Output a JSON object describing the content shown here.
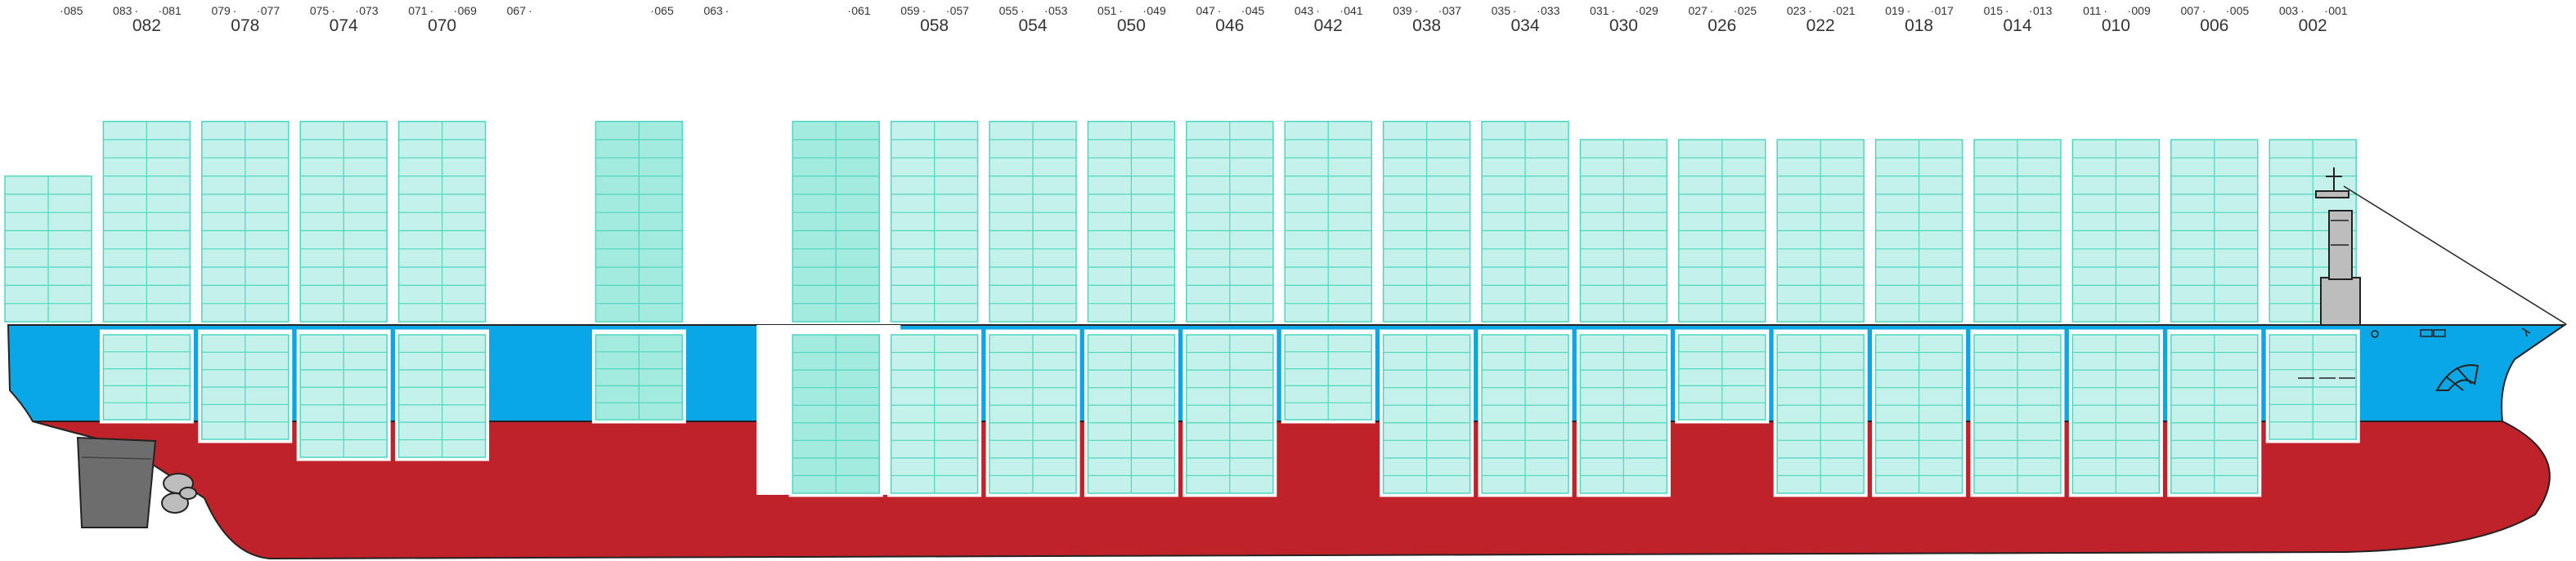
{
  "colors": {
    "hull_red": "#bf2229",
    "hull_blue": "#0aa7e6",
    "hull_blue_dark": "#0a82c8",
    "container_fill": "#c4f2ea",
    "container_highlight": "#a3ebde",
    "container_line": "#4fd6bf",
    "outline": "#222222",
    "machinery_grey": "#6d6d6d",
    "bridge_grey": "#bdbdbd"
  },
  "icons": {
    "propeller": "propeller-icon",
    "rudder": "rudder-icon",
    "bridge": "bridge-icon",
    "mast": "mast-icon",
    "logo": "company-logo-icon"
  },
  "bays": [
    {
      "big": "",
      "left": "",
      "right": "085",
      "deck_tiers": 8,
      "deck_style": "normal",
      "hold": "none"
    },
    {
      "big": "082",
      "left": "083",
      "right": "081",
      "deck_tiers": 11,
      "deck_style": "normal",
      "hold": "short"
    },
    {
      "big": "078",
      "left": "079",
      "right": "077",
      "deck_tiers": 11,
      "deck_style": "normal",
      "hold": "medium"
    },
    {
      "big": "074",
      "left": "075",
      "right": "073",
      "deck_tiers": 11,
      "deck_style": "normal",
      "hold": "long"
    },
    {
      "big": "070",
      "left": "071",
      "right": "069",
      "deck_tiers": 11,
      "deck_style": "normal",
      "hold": "long"
    },
    {
      "big": "",
      "left": "067",
      "right": "",
      "deck_tiers": 0,
      "deck_style": "none",
      "hold": "none"
    },
    {
      "big": "",
      "left": "",
      "right": "065",
      "deck_tiers": 11,
      "deck_style": "highlight",
      "hold": "single"
    },
    {
      "big": "",
      "left": "063",
      "right": "",
      "deck_tiers": 0,
      "deck_style": "none",
      "hold": "none"
    },
    {
      "big": "",
      "left": "",
      "right": "061",
      "deck_tiers": 11,
      "deck_style": "highlight",
      "hold": "full"
    },
    {
      "big": "058",
      "left": "059",
      "right": "057",
      "deck_tiers": 11,
      "deck_style": "normal",
      "hold": "full"
    },
    {
      "big": "054",
      "left": "055",
      "right": "053",
      "deck_tiers": 11,
      "deck_style": "normal",
      "hold": "full"
    },
    {
      "big": "050",
      "left": "051",
      "right": "049",
      "deck_tiers": 11,
      "deck_style": "normal",
      "hold": "full"
    },
    {
      "big": "046",
      "left": "047",
      "right": "045",
      "deck_tiers": 11,
      "deck_style": "normal",
      "hold": "full"
    },
    {
      "big": "042",
      "left": "043",
      "right": "041",
      "deck_tiers": 11,
      "deck_style": "normal",
      "hold": "short"
    },
    {
      "big": "038",
      "left": "039",
      "right": "037",
      "deck_tiers": 11,
      "deck_style": "normal",
      "hold": "full"
    },
    {
      "big": "034",
      "left": "035",
      "right": "033",
      "deck_tiers": 11,
      "deck_style": "normal",
      "hold": "full"
    },
    {
      "big": "030",
      "left": "031",
      "right": "029",
      "deck_tiers": 10,
      "deck_style": "normal",
      "hold": "full"
    },
    {
      "big": "026",
      "left": "027",
      "right": "025",
      "deck_tiers": 10,
      "deck_style": "normal",
      "hold": "short"
    },
    {
      "big": "022",
      "left": "023",
      "right": "021",
      "deck_tiers": 10,
      "deck_style": "normal",
      "hold": "full"
    },
    {
      "big": "018",
      "left": "019",
      "right": "017",
      "deck_tiers": 10,
      "deck_style": "normal",
      "hold": "full"
    },
    {
      "big": "014",
      "left": "015",
      "right": "013",
      "deck_tiers": 10,
      "deck_style": "normal",
      "hold": "full"
    },
    {
      "big": "010",
      "left": "011",
      "right": "009",
      "deck_tiers": 10,
      "deck_style": "normal",
      "hold": "full"
    },
    {
      "big": "006",
      "left": "007",
      "right": "005",
      "deck_tiers": 10,
      "deck_style": "normal",
      "hold": "full"
    },
    {
      "big": "002",
      "left": "003",
      "right": "001",
      "deck_tiers": 10,
      "deck_style": "normal",
      "hold": "medium"
    }
  ]
}
